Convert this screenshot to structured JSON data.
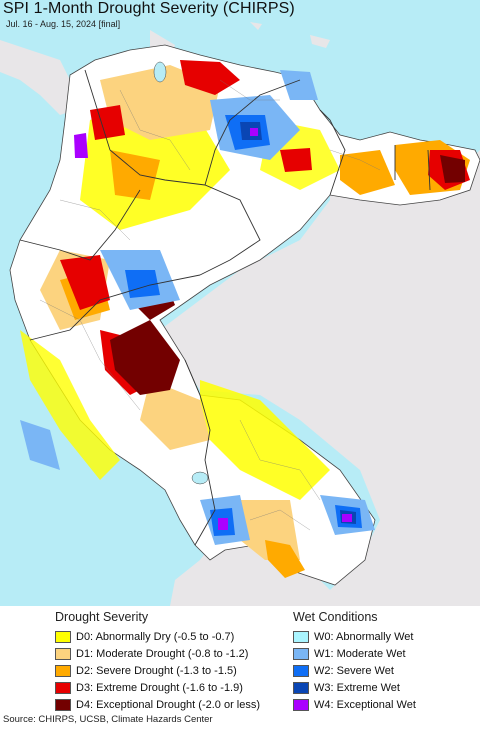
{
  "title": "SPI 1-Month Drought Severity (CHIRPS)",
  "subtitle": "Jul. 16 - Aug. 15, 2024 [final]",
  "legend": {
    "drought": {
      "heading": "Drought Severity",
      "items": [
        {
          "label": "D0: Abnormally Dry (-0.5 to -0.7)",
          "color": "#ffff00"
        },
        {
          "label": "D1: Moderate Drought (-0.8 to -1.2)",
          "color": "#fcd37f"
        },
        {
          "label": "D2: Severe Drought (-1.3 to -1.5)",
          "color": "#ffaa00"
        },
        {
          "label": "D3: Extreme Drought (-1.6 to -1.9)",
          "color": "#e60000"
        },
        {
          "label": "D4: Exceptional Drought (-2.0 or less)",
          "color": "#730000"
        }
      ]
    },
    "wet": {
      "heading": "Wet Conditions",
      "items": [
        {
          "label": "W0: Abnormally Wet",
          "color": "#aaf5ff"
        },
        {
          "label": "W1: Moderate Wet",
          "color": "#7ab6f5"
        },
        {
          "label": "W2: Severe Wet",
          "color": "#0f6ef5"
        },
        {
          "label": "W3: Extreme Wet",
          "color": "#0a46b4"
        },
        {
          "label": "W4: Exceptional Wet",
          "color": "#aa00ff"
        }
      ]
    }
  },
  "source": "Source: CHIRPS, UCSB, Climate Hazards Center",
  "colors": {
    "ocean": "#b7ecf6",
    "no_data_land": "#e8e6e8",
    "normal": "#ffffff",
    "borders": "#555555"
  }
}
